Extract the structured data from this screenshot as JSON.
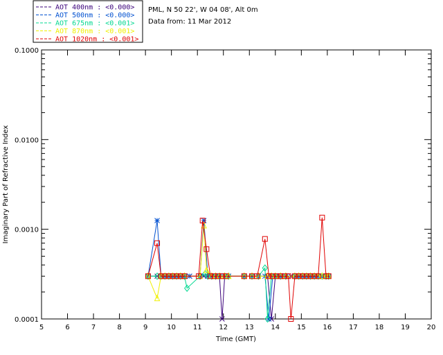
{
  "header": {
    "station": "PML, N 50 22', W 04 08', Alt 0m",
    "date_line": "Data from: 11 Mar 2012"
  },
  "colors": {
    "background": "#ffffff",
    "axes": "#000000"
  },
  "chart_data": {
    "type": "line",
    "title": "",
    "xlabel": "Time (GMT)",
    "ylabel": "Imaginary Part of Refractive Index",
    "xlim": [
      5,
      20
    ],
    "ylim": [
      0.0001,
      0.1
    ],
    "yscale": "log",
    "x_ticks": [
      "5",
      "6",
      "7",
      "8",
      "9",
      "10",
      "11",
      "12",
      "13",
      "14",
      "15",
      "16",
      "17",
      "18",
      "19",
      "20"
    ],
    "y_ticks": [
      "0.0001",
      "0.0010",
      "0.0100",
      "0.1000"
    ],
    "grid": false,
    "legend_position": "top-left outside",
    "series": [
      {
        "name": "AOT  400nm : <0.000>",
        "color": "#3a007a",
        "marker": "cross",
        "x": [
          9.1,
          9.45,
          9.6,
          9.75,
          9.9,
          10.05,
          10.2,
          10.35,
          10.5,
          10.7,
          11.1,
          11.25,
          11.4,
          11.55,
          11.7,
          11.85,
          11.95,
          12.05,
          12.2,
          12.8,
          13.1,
          13.35,
          13.7,
          13.85,
          14.0,
          14.2,
          14.4,
          14.6,
          14.75,
          14.9,
          15.05,
          15.2,
          15.35,
          15.5,
          15.65,
          15.8,
          15.95,
          16.05
        ],
        "y": [
          0.0003,
          0.0003,
          0.0003,
          0.0003,
          0.0003,
          0.0003,
          0.0003,
          0.0003,
          0.0003,
          0.0003,
          0.0003,
          0.0003,
          0.0003,
          0.0003,
          0.0003,
          0.0003,
          0.0001,
          0.0003,
          0.0003,
          0.0003,
          0.0003,
          0.0003,
          0.0003,
          0.0001,
          0.0003,
          0.0003,
          0.0003,
          0.0003,
          0.0003,
          0.0003,
          0.0003,
          0.0003,
          0.0003,
          0.0003,
          0.0003,
          0.0003,
          0.0003,
          0.0003
        ]
      },
      {
        "name": "AOT  500nm : <0.000>",
        "color": "#0050d0",
        "marker": "star",
        "x": [
          9.1,
          9.45,
          9.6,
          9.75,
          9.9,
          10.05,
          10.2,
          10.35,
          10.5,
          10.7,
          11.1,
          11.25,
          11.4,
          11.55,
          11.7,
          11.85,
          12.05,
          12.2,
          12.8,
          13.1,
          13.35,
          13.6,
          13.75,
          13.9,
          14.05,
          14.2,
          14.4,
          14.75,
          14.9,
          15.05,
          15.2,
          15.35,
          15.5,
          15.65,
          15.8,
          15.95,
          16.05
        ],
        "y": [
          0.0003,
          0.00125,
          0.0003,
          0.0003,
          0.0003,
          0.0003,
          0.0003,
          0.0003,
          0.0003,
          0.0003,
          0.0003,
          0.00125,
          0.0003,
          0.0003,
          0.0003,
          0.0003,
          0.0003,
          0.0003,
          0.0003,
          0.0003,
          0.0003,
          0.0003,
          0.0001,
          0.0003,
          0.0003,
          0.0003,
          0.0003,
          0.0003,
          0.0003,
          0.0003,
          0.0003,
          0.0003,
          0.0003,
          0.0003,
          0.0003,
          0.0003,
          0.0003
        ]
      },
      {
        "name": "AOT  675nm : <0.001>",
        "color": "#00d890",
        "marker": "diamond",
        "x": [
          9.1,
          9.45,
          9.6,
          9.75,
          9.9,
          10.05,
          10.2,
          10.35,
          10.5,
          10.6,
          11.1,
          11.3,
          11.4,
          11.55,
          11.7,
          11.85,
          12.05,
          12.2,
          12.8,
          13.1,
          13.35,
          13.6,
          13.7,
          13.85,
          14.0,
          14.2,
          14.4,
          14.75,
          14.9,
          15.05,
          15.2,
          15.35,
          15.5,
          15.65,
          15.8,
          15.95,
          16.05
        ],
        "y": [
          0.0003,
          0.0003,
          0.0003,
          0.0003,
          0.0003,
          0.0003,
          0.0003,
          0.0003,
          0.0003,
          0.00022,
          0.0003,
          0.00032,
          0.0003,
          0.0003,
          0.0003,
          0.0003,
          0.0003,
          0.0003,
          0.0003,
          0.0003,
          0.0003,
          0.00037,
          0.0001,
          0.0003,
          0.0003,
          0.0003,
          0.0003,
          0.0003,
          0.0003,
          0.0003,
          0.0003,
          0.0003,
          0.0003,
          0.0003,
          0.0003,
          0.0003,
          0.0003
        ]
      },
      {
        "name": "AOT  870nm : <0.001>",
        "color": "#f0f000",
        "marker": "triangle",
        "x": [
          9.1,
          9.45,
          9.6,
          9.75,
          9.9,
          10.05,
          10.2,
          10.35,
          10.5,
          11.1,
          11.25,
          11.35,
          11.55,
          11.7,
          11.85,
          12.05,
          12.2,
          12.8,
          13.1,
          13.35,
          13.7,
          13.85,
          14.0,
          14.2,
          14.4,
          14.75,
          14.9,
          15.05,
          15.2,
          15.35,
          15.5,
          15.65,
          15.8,
          15.95,
          16.05
        ],
        "y": [
          0.0003,
          0.00017,
          0.0003,
          0.0003,
          0.0003,
          0.0003,
          0.0003,
          0.0003,
          0.0003,
          0.0003,
          0.0011,
          0.00035,
          0.0003,
          0.0003,
          0.0003,
          0.0003,
          0.0003,
          0.0003,
          0.0003,
          0.0003,
          0.0003,
          0.0003,
          0.0003,
          0.0003,
          0.0003,
          0.0003,
          0.0003,
          0.0003,
          0.0003,
          0.0003,
          0.0003,
          0.0003,
          0.0003,
          0.0003,
          0.0003
        ]
      },
      {
        "name": "AOT 1020nm : <0.001>",
        "color": "#e00000",
        "marker": "square",
        "x": [
          9.1,
          9.45,
          9.6,
          9.75,
          9.9,
          10.05,
          10.2,
          10.35,
          10.5,
          11.05,
          11.2,
          11.35,
          11.5,
          11.65,
          11.8,
          11.95,
          12.1,
          12.8,
          13.1,
          13.3,
          13.6,
          13.75,
          13.9,
          14.05,
          14.2,
          14.35,
          14.5,
          14.6,
          14.75,
          14.9,
          15.05,
          15.2,
          15.35,
          15.5,
          15.65,
          15.8,
          15.95,
          16.05
        ],
        "y": [
          0.0003,
          0.0007,
          0.0003,
          0.0003,
          0.0003,
          0.0003,
          0.0003,
          0.0003,
          0.0003,
          0.0003,
          0.00125,
          0.0006,
          0.0003,
          0.0003,
          0.0003,
          0.0003,
          0.0003,
          0.0003,
          0.0003,
          0.0003,
          0.00078,
          0.0003,
          0.0003,
          0.0003,
          0.0003,
          0.0003,
          0.0003,
          0.0001,
          0.0003,
          0.0003,
          0.0003,
          0.0003,
          0.0003,
          0.0003,
          0.0003,
          0.00135,
          0.0003,
          0.0003
        ]
      }
    ]
  }
}
